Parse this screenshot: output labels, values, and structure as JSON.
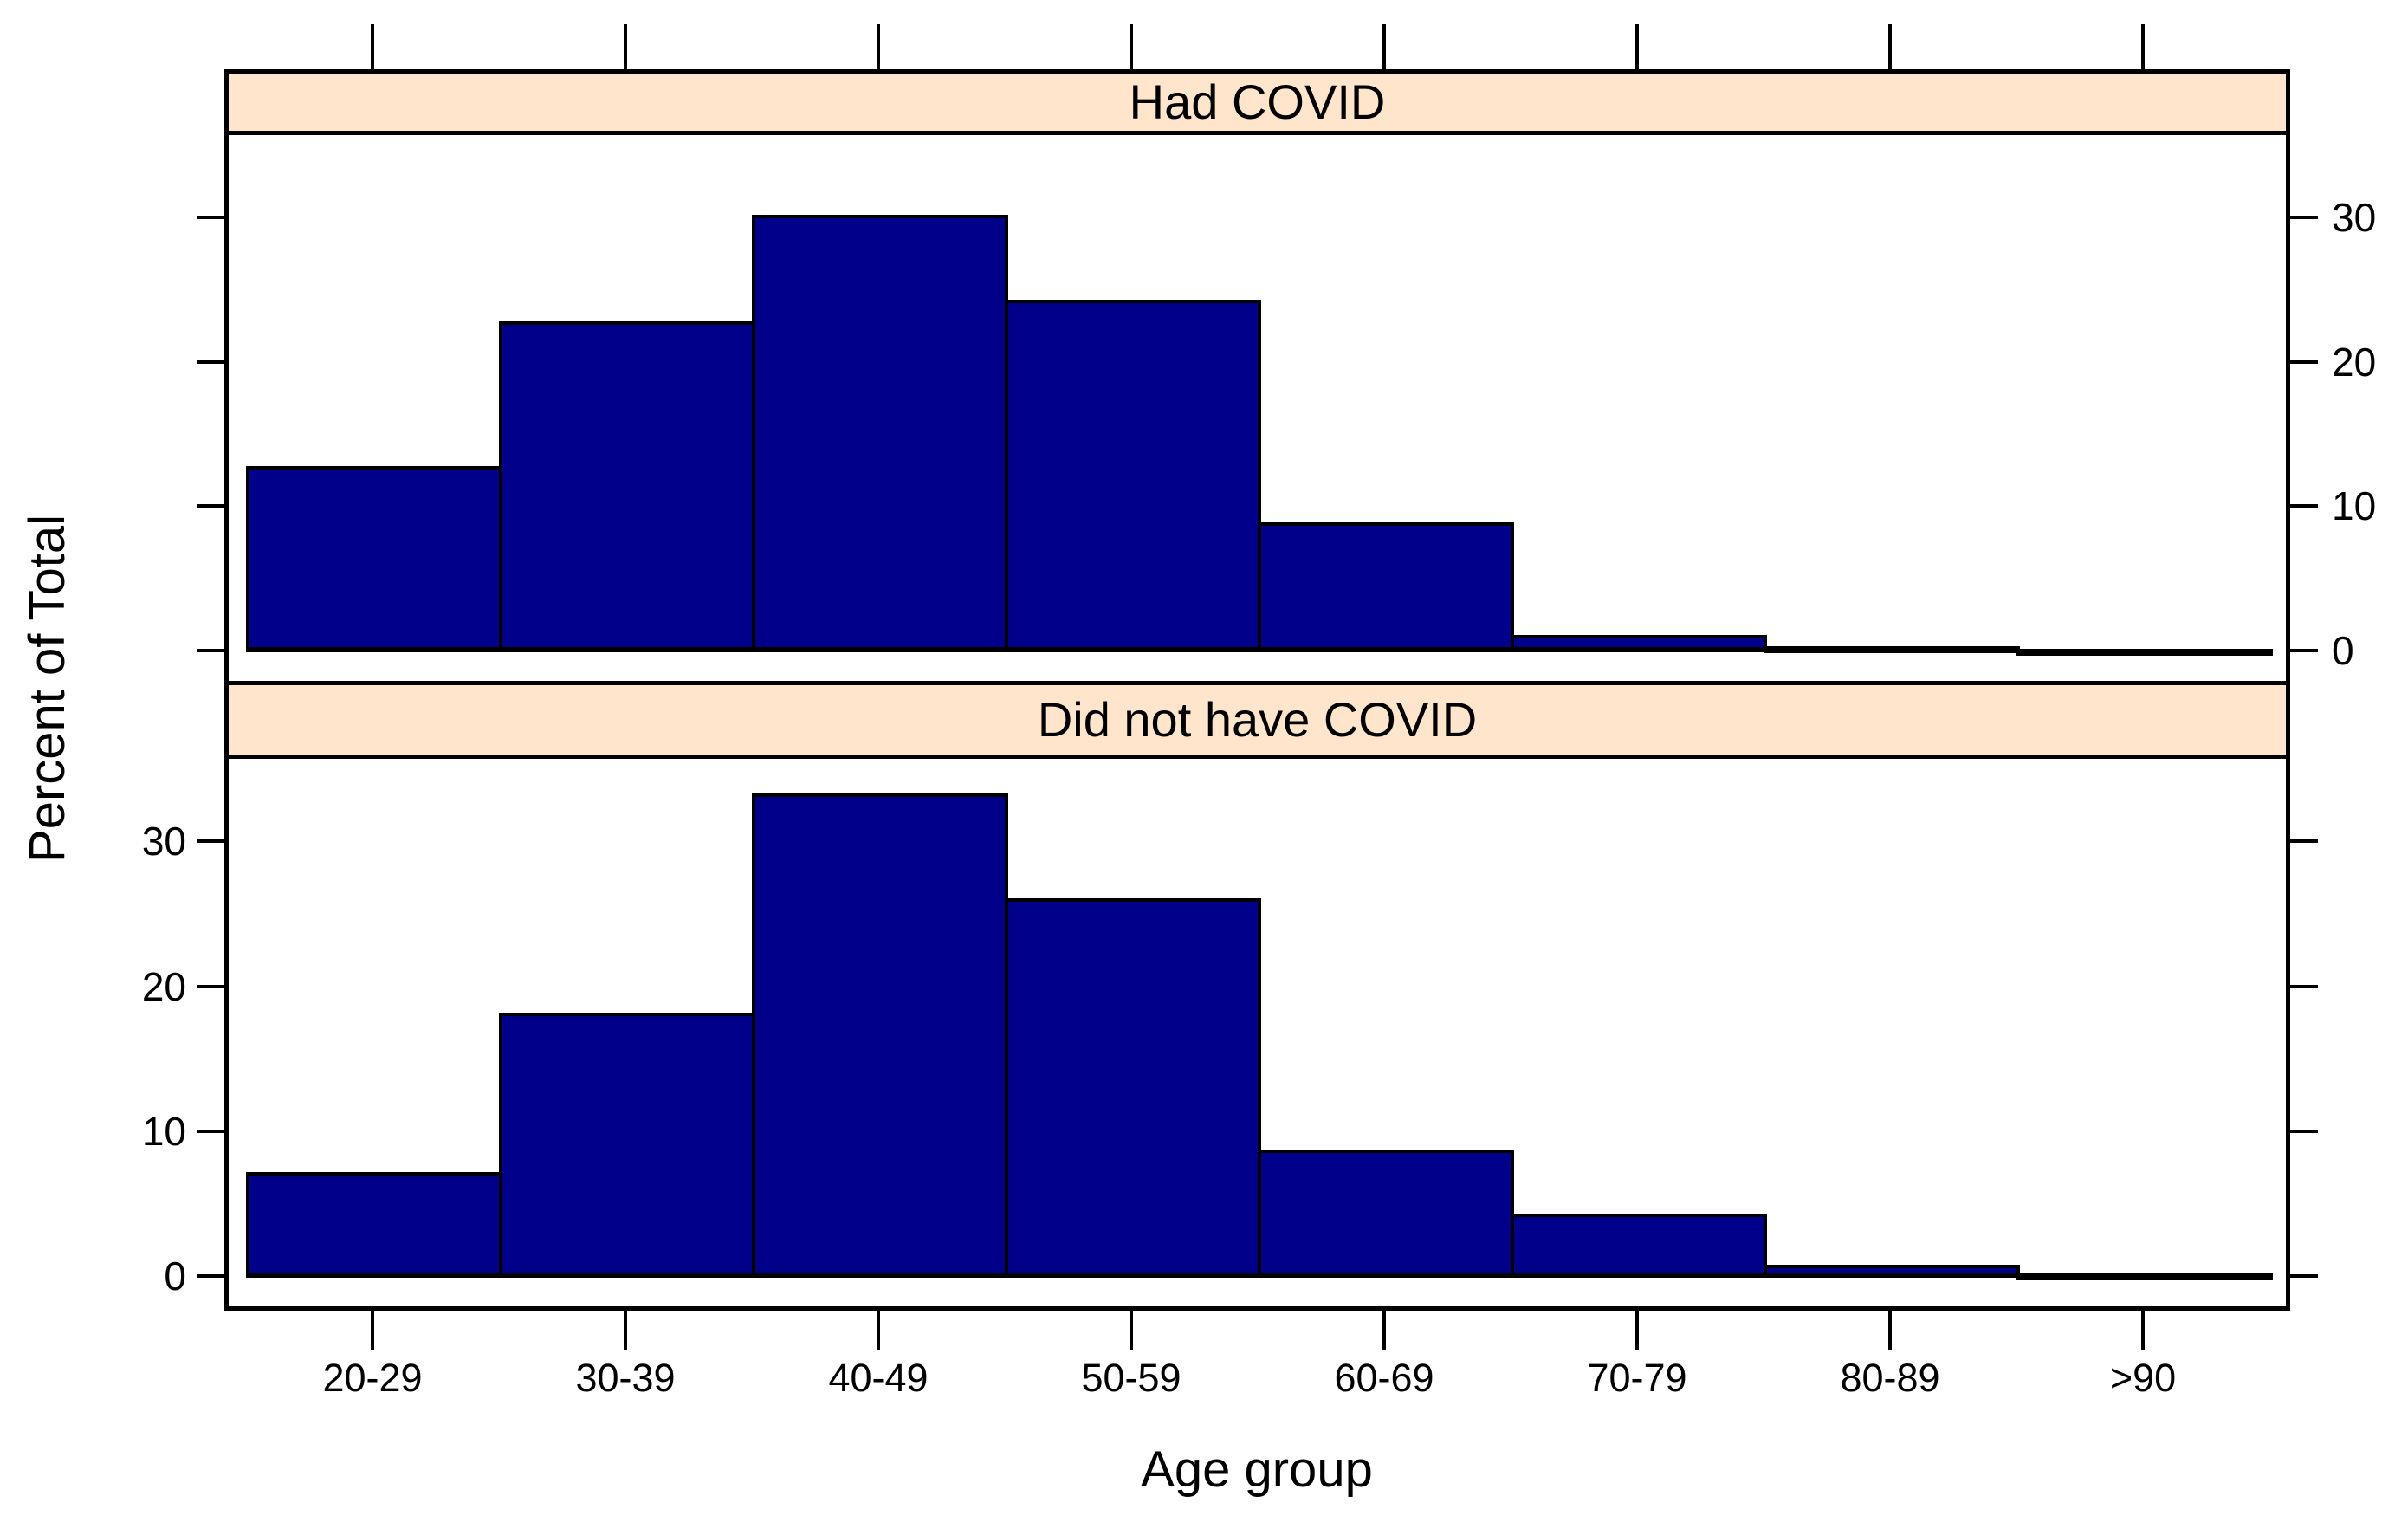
{
  "chart_data": {
    "type": "bar",
    "subtype": "lattice-conditional-histogram",
    "title": "",
    "xlabel": "Age group",
    "ylabel": "Percent of Total",
    "categories": [
      "20-29",
      "30-39",
      "40-49",
      "50-59",
      "60-69",
      "70-79",
      "80-89",
      ">90"
    ],
    "panels": [
      {
        "strip_label": "Had COVID",
        "y_axis_label_side": "right",
        "values": [
          12.8,
          22.8,
          30.2,
          24.3,
          8.9,
          1.1,
          0.3,
          0.1
        ]
      },
      {
        "strip_label": "Did not have COVID",
        "y_axis_label_side": "left",
        "values": [
          7.2,
          18.2,
          33.3,
          26.1,
          8.7,
          4.3,
          0.8,
          0.2
        ]
      }
    ],
    "yticks": [
      0,
      10,
      20,
      30
    ],
    "ylim": [
      -2.4,
      36.0
    ],
    "grid": "off",
    "legend": "none",
    "colors": {
      "bar_fill": "#00008B",
      "bar_border": "#000000",
      "strip_fill": "#FFE5CC",
      "axis_line": "#000000",
      "text": "#000000",
      "background": "#FFFFFF"
    }
  }
}
